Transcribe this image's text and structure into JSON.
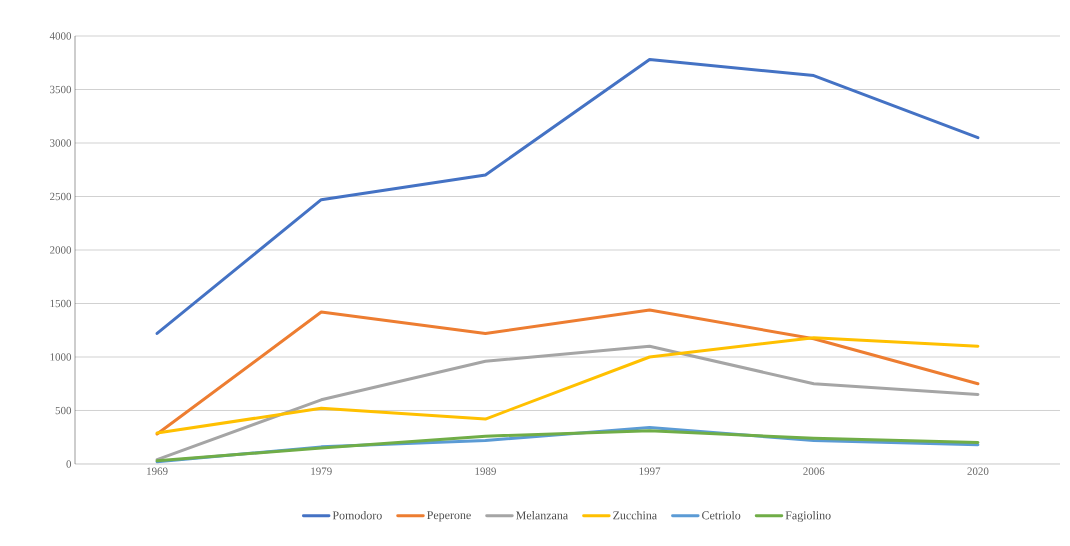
{
  "chart_data": {
    "type": "line",
    "categories": [
      "1969",
      "1979",
      "1989",
      "1997",
      "2006",
      "2020"
    ],
    "series": [
      {
        "name": "Pomodoro",
        "color": "#4472c4",
        "values": [
          1220,
          2470,
          2700,
          3780,
          3630,
          3050
        ]
      },
      {
        "name": "Peperone",
        "color": "#ed7d31",
        "values": [
          280,
          1420,
          1220,
          1440,
          1170,
          750
        ]
      },
      {
        "name": "Melanzana",
        "color": "#a5a5a5",
        "values": [
          40,
          600,
          960,
          1100,
          750,
          650
        ]
      },
      {
        "name": "Zucchina",
        "color": "#ffc000",
        "values": [
          290,
          520,
          420,
          1000,
          1180,
          1100
        ]
      },
      {
        "name": "Cetriolo",
        "color": "#5b9bd5",
        "values": [
          20,
          160,
          220,
          340,
          220,
          180
        ]
      },
      {
        "name": "Fagiolino",
        "color": "#70ad47",
        "values": [
          30,
          150,
          260,
          310,
          240,
          200
        ]
      }
    ],
    "ylim": [
      0,
      4000
    ],
    "yticks": [
      0,
      500,
      1000,
      1500,
      2000,
      2500,
      3000,
      3500,
      4000
    ],
    "grid": "y",
    "legend": "bottom",
    "marker": "none",
    "line_style": "solid"
  }
}
